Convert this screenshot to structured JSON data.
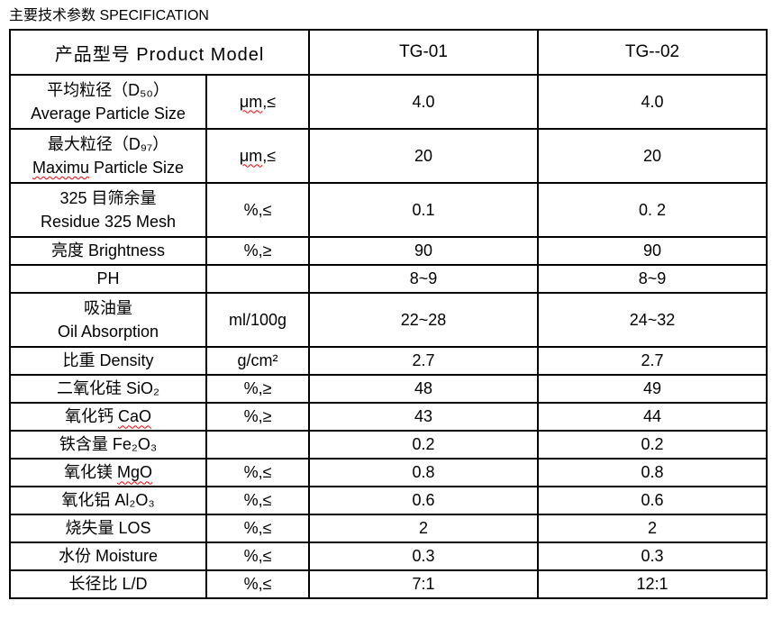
{
  "title": "主要技术参数 SPECIFICATION",
  "colors": {
    "text": "#000000",
    "background": "#ffffff",
    "table_border": "#000000",
    "misspell_underline": "#ff0000"
  },
  "table": {
    "header": {
      "product_model_label": "产品型号 Product Model",
      "columns": [
        "TG-01",
        "TG--02"
      ]
    },
    "rows": [
      {
        "line1": "平均粒径（D₅₀）",
        "line2": "Average Particle Size",
        "unit": "μm,≤",
        "unit_mark": "μm",
        "tg01": "4.0",
        "tg02": "4.0"
      },
      {
        "line1": "最大粒径（D₉₇）",
        "line2": "Maximu Particle Size",
        "line2_mark": "Maximu",
        "unit": "μm,≤",
        "unit_mark": "μm",
        "tg01": "20",
        "tg02": "20"
      },
      {
        "line1": "325 目筛余量",
        "line2": "Residue 325 Mesh",
        "unit": "%,≤",
        "tg01": "0.1",
        "tg02": "0. 2"
      },
      {
        "line1": "亮度 Brightness",
        "unit": "%,≥",
        "tg01": "90",
        "tg02": "90"
      },
      {
        "line1": "PH",
        "unit": "",
        "tg01": "8~9",
        "tg02": "8~9"
      },
      {
        "line1": "吸油量",
        "line2": "Oil Absorption",
        "unit": "ml/100g",
        "tg01": "22~28",
        "tg02": "24~32"
      },
      {
        "line1": "比重 Density",
        "unit": "g/cm²",
        "tg01": "2.7",
        "tg02": "2.7"
      },
      {
        "line1": "二氧化硅 SiO₂",
        "unit": "%,≥",
        "tg01": "48",
        "tg02": "49"
      },
      {
        "line1": "氧化钙 CaO",
        "line1_mark": "CaO",
        "unit": "%,≥",
        "tg01": "43",
        "tg02": "44"
      },
      {
        "line1": "铁含量 Fe₂O₃",
        "unit": "",
        "tg01": "0.2",
        "tg02": "0.2"
      },
      {
        "line1": "氧化镁 MgO",
        "line1_mark": "MgO",
        "unit": "%,≤",
        "tg01": "0.8",
        "tg02": "0.8"
      },
      {
        "line1": "氧化铝 Al₂O₃",
        "unit": "%,≤",
        "tg01": "0.6",
        "tg02": "0.6"
      },
      {
        "line1": "烧失量 LOS",
        "unit": "%,≤",
        "tg01": "2",
        "tg02": "2"
      },
      {
        "line1": "水份 Moisture",
        "unit": "%,≤",
        "tg01": "0.3",
        "tg02": "0.3"
      },
      {
        "line1": "长径比 L/D",
        "unit": "%,≤",
        "tg01": "7:1",
        "tg02": "12:1"
      }
    ]
  }
}
